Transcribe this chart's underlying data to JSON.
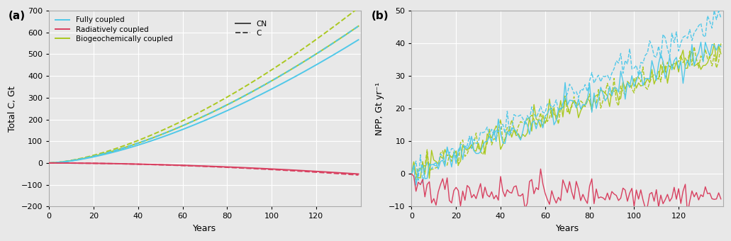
{
  "panel_a": {
    "title": "(a)",
    "ylabel": "Total C, Gt",
    "xlabel": "Years",
    "xlim": [
      0,
      140
    ],
    "ylim": [
      -200,
      700
    ],
    "yticks": [
      -200,
      -100,
      0,
      100,
      200,
      300,
      400,
      500,
      600,
      700
    ],
    "xticks": [
      0,
      20,
      40,
      60,
      80,
      100,
      120
    ]
  },
  "panel_b": {
    "title": "(b)",
    "ylabel": "NPP, Gt yr⁻¹",
    "xlabel": "Years",
    "xlim": [
      0,
      140
    ],
    "ylim": [
      -10,
      50
    ],
    "yticks": [
      -10,
      0,
      10,
      20,
      30,
      40,
      50
    ],
    "xticks": [
      0,
      20,
      40,
      60,
      80,
      100,
      120
    ]
  },
  "colors": {
    "fully_coupled": "#50c8e8",
    "radiatively_coupled": "#d84060",
    "biogeochemically_coupled": "#aac820"
  },
  "legend_labels": {
    "fully_coupled": "Fully coupled",
    "radiatively_coupled": "Radiatively coupled",
    "biogeochemically_coupled": "Biogeochemically coupled",
    "CN": "CN",
    "C": "C"
  },
  "background_color": "#e8e8e8",
  "grid_color": "#ffffff",
  "n_years": 140,
  "seed": 42
}
